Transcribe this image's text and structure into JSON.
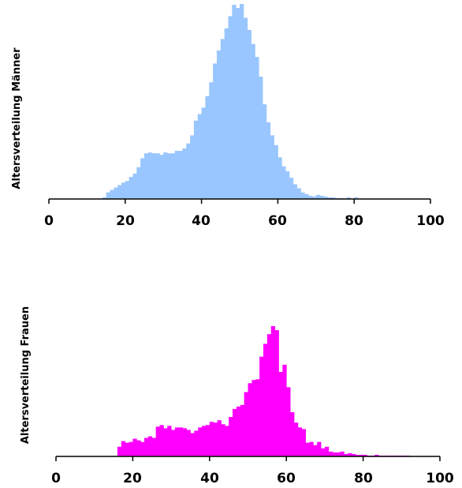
{
  "chart_data": [
    {
      "type": "bar",
      "ylabel": "Altersverteilung Männer",
      "xlabel": "",
      "title": "",
      "color": "#99c6fe",
      "xlim": [
        0,
        100
      ],
      "xticks": [
        "0",
        "20",
        "40",
        "60",
        "80",
        "100"
      ],
      "bin_start": 14,
      "bin_width": 1,
      "values": [
        2,
        8,
        11,
        14,
        17,
        20,
        22,
        27,
        31,
        39,
        50,
        56,
        57,
        56,
        56,
        54,
        57,
        56,
        56,
        59,
        59,
        62,
        68,
        78,
        96,
        104,
        112,
        126,
        143,
        166,
        182,
        196,
        209,
        224,
        238,
        234,
        239,
        222,
        207,
        190,
        174,
        150,
        116,
        94,
        78,
        66,
        51,
        40,
        34,
        26,
        18,
        13,
        8,
        6,
        4,
        3,
        5,
        4,
        3,
        2,
        2,
        1,
        1,
        0,
        2,
        0,
        2
      ]
    },
    {
      "type": "bar",
      "ylabel": "Altersverteilung Frauen",
      "xlabel": "",
      "title": "",
      "color": "#ff00ff",
      "xlim": [
        0,
        100
      ],
      "xticks": [
        "0",
        "20",
        "40",
        "60",
        "80",
        "100"
      ],
      "bin_start": 16,
      "bin_width": 1,
      "values": [
        12,
        19,
        17,
        18,
        22,
        20,
        18,
        23,
        25,
        23,
        37,
        39,
        35,
        38,
        33,
        36,
        36,
        35,
        33,
        29,
        32,
        36,
        38,
        39,
        43,
        42,
        45,
        40,
        38,
        49,
        59,
        62,
        64,
        80,
        91,
        95,
        96,
        124,
        140,
        152,
        162,
        157,
        105,
        114,
        86,
        55,
        42,
        36,
        34,
        17,
        18,
        14,
        18,
        10,
        12,
        6,
        5,
        5,
        6,
        3,
        4,
        3,
        2,
        2,
        2,
        1,
        1,
        2,
        1,
        1,
        1,
        1,
        1,
        1,
        1,
        1
      ]
    }
  ]
}
